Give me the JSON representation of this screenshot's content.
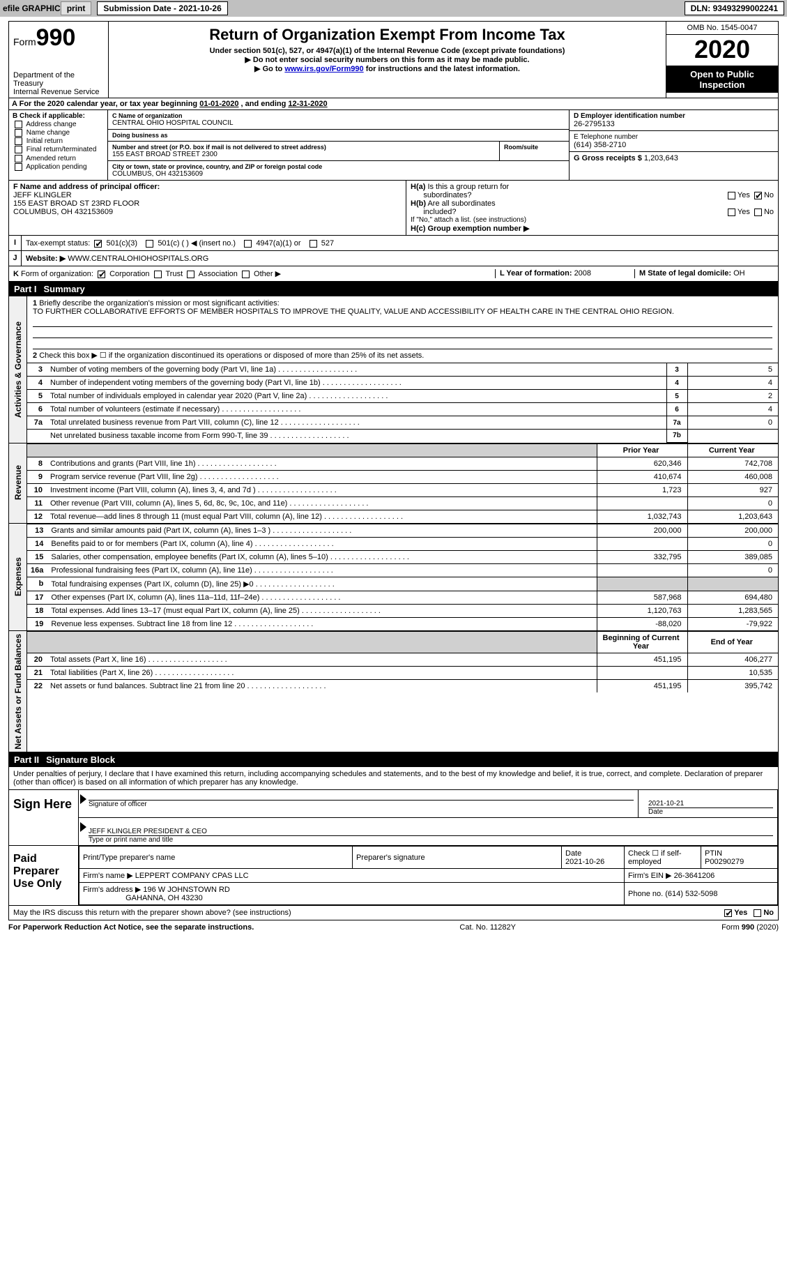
{
  "topbar": {
    "efile_label": "efile GRAPHIC",
    "print_btn": "print",
    "submission_date_label": "Submission Date - ",
    "submission_date": "2021-10-26",
    "dln_label": "DLN: ",
    "dln": "93493299002241"
  },
  "header": {
    "form_word": "Form",
    "form_number": "990",
    "title": "Return of Organization Exempt From Income Tax",
    "subtitle": "Under section 501(c), 527, or 4947(a)(1) of the Internal Revenue Code (except private foundations)",
    "line1": "▶ Do not enter social security numbers on this form as it may be made public.",
    "line2_pre": "▶ Go to ",
    "line2_link": "www.irs.gov/Form990",
    "line2_post": " for instructions and the latest information.",
    "dept1": "Department of the",
    "dept2": "Treasury",
    "dept3": "Internal Revenue Service",
    "omb": "OMB No. 1545-0047",
    "year": "2020",
    "open1": "Open to Public",
    "open2": "Inspection"
  },
  "taxyear": {
    "text_pre": "For the 2020 calendar year, or tax year beginning ",
    "begin": "01-01-2020",
    "mid": " , and ending ",
    "end": "12-31-2020"
  },
  "boxB": {
    "header": "B Check if applicable:",
    "items": [
      "Address change",
      "Name change",
      "Initial return",
      "Final return/terminated",
      "Amended return",
      "Application pending"
    ]
  },
  "boxC": {
    "label": "C Name of organization",
    "name": "CENTRAL OHIO HOSPITAL COUNCIL",
    "dba_label": "Doing business as",
    "dba": "",
    "addr_label": "Number and street (or P.O. box if mail is not delivered to street address)",
    "addr": "155 EAST BROAD STREET 2300",
    "room_label": "Room/suite",
    "room": "",
    "city_label": "City or town, state or province, country, and ZIP or foreign postal code",
    "city": "COLUMBUS, OH  432153609"
  },
  "boxD": {
    "label": "D Employer identification number",
    "value": "26-2795133"
  },
  "boxE": {
    "label": "E Telephone number",
    "value": "(614) 358-2710"
  },
  "boxG": {
    "label": "G Gross receipts $ ",
    "value": "1,203,643"
  },
  "boxF": {
    "label": "F Name and address of principal officer:",
    "name": "JEFF KLINGLER",
    "addr1": "155 EAST BROAD ST 23RD FLOOR",
    "addr2": "COLUMBUS, OH  432153609"
  },
  "boxH": {
    "ha_label": "H(a) Is this a group return for subordinates?",
    "ha_yes": "Yes",
    "ha_no": "No",
    "hb_label": "H(b) Are all subordinates included?",
    "hb_note": "If \"No,\" attach a list. (see instructions)",
    "hc_label": "H(c) Group exemption number ▶"
  },
  "rowI": {
    "label": "I",
    "text": "Tax-exempt status:",
    "opts": [
      "501(c)(3)",
      "501(c) (  ) ◀ (insert no.)",
      "4947(a)(1) or",
      "527"
    ]
  },
  "rowJ": {
    "label": "J",
    "text": "Website: ▶",
    "value": "WWW.CENTRALOHIOHOSPITALS.ORG"
  },
  "rowK": {
    "label": "K",
    "text": "Form of organization:",
    "opts": [
      "Corporation",
      "Trust",
      "Association",
      "Other ▶"
    ]
  },
  "rowL": {
    "label": "L Year of formation: ",
    "value": "2008"
  },
  "rowM": {
    "label": "M State of legal domicile: ",
    "value": "OH"
  },
  "part1": {
    "partnum": "Part I",
    "title": "Summary",
    "q1_label": "1",
    "q1_text": "Briefly describe the organization's mission or most significant activities:",
    "q1_answer": "TO FURTHER COLLABORATIVE EFFORTS OF MEMBER HOSPITALS TO IMPROVE THE QUALITY, VALUE AND ACCESSIBILITY OF HEALTH CARE IN THE CENTRAL OHIO REGION.",
    "q2_text": "Check this box ▶ ☐ if the organization discontinued its operations or disposed of more than 25% of its net assets.",
    "side_gov": "Activities & Governance",
    "side_rev": "Revenue",
    "side_exp": "Expenses",
    "side_net": "Net Assets or Fund Balances",
    "hdr_prior": "Prior Year",
    "hdr_current": "Current Year",
    "hdr_begin": "Beginning of Current Year",
    "hdr_end": "End of Year",
    "lines_gov": [
      {
        "n": "3",
        "d": "Number of voting members of the governing body (Part VI, line 1a)",
        "box": "3",
        "v": "5"
      },
      {
        "n": "4",
        "d": "Number of independent voting members of the governing body (Part VI, line 1b)",
        "box": "4",
        "v": "4"
      },
      {
        "n": "5",
        "d": "Total number of individuals employed in calendar year 2020 (Part V, line 2a)",
        "box": "5",
        "v": "2"
      },
      {
        "n": "6",
        "d": "Total number of volunteers (estimate if necessary)",
        "box": "6",
        "v": "4"
      },
      {
        "n": "7a",
        "d": "Total unrelated business revenue from Part VIII, column (C), line 12",
        "box": "7a",
        "v": "0"
      },
      {
        "n": "",
        "d": "Net unrelated business taxable income from Form 990-T, line 39",
        "box": "7b",
        "v": ""
      }
    ],
    "lines_rev": [
      {
        "n": "8",
        "d": "Contributions and grants (Part VIII, line 1h)",
        "p": "620,346",
        "c": "742,708"
      },
      {
        "n": "9",
        "d": "Program service revenue (Part VIII, line 2g)",
        "p": "410,674",
        "c": "460,008"
      },
      {
        "n": "10",
        "d": "Investment income (Part VIII, column (A), lines 3, 4, and 7d )",
        "p": "1,723",
        "c": "927"
      },
      {
        "n": "11",
        "d": "Other revenue (Part VIII, column (A), lines 5, 6d, 8c, 9c, 10c, and 11e)",
        "p": "",
        "c": "0"
      },
      {
        "n": "12",
        "d": "Total revenue—add lines 8 through 11 (must equal Part VIII, column (A), line 12)",
        "p": "1,032,743",
        "c": "1,203,643"
      }
    ],
    "lines_exp": [
      {
        "n": "13",
        "d": "Grants and similar amounts paid (Part IX, column (A), lines 1–3 )",
        "p": "200,000",
        "c": "200,000"
      },
      {
        "n": "14",
        "d": "Benefits paid to or for members (Part IX, column (A), line 4)",
        "p": "",
        "c": "0"
      },
      {
        "n": "15",
        "d": "Salaries, other compensation, employee benefits (Part IX, column (A), lines 5–10)",
        "p": "332,795",
        "c": "389,085"
      },
      {
        "n": "16a",
        "d": "Professional fundraising fees (Part IX, column (A), line 11e)",
        "p": "",
        "c": "0"
      },
      {
        "n": "b",
        "d": "Total fundraising expenses (Part IX, column (D), line 25) ▶0",
        "p": "SHADE",
        "c": "SHADE"
      },
      {
        "n": "17",
        "d": "Other expenses (Part IX, column (A), lines 11a–11d, 11f–24e)",
        "p": "587,968",
        "c": "694,480"
      },
      {
        "n": "18",
        "d": "Total expenses. Add lines 13–17 (must equal Part IX, column (A), line 25)",
        "p": "1,120,763",
        "c": "1,283,565"
      },
      {
        "n": "19",
        "d": "Revenue less expenses. Subtract line 18 from line 12",
        "p": "-88,020",
        "c": "-79,922"
      }
    ],
    "lines_net": [
      {
        "n": "20",
        "d": "Total assets (Part X, line 16)",
        "p": "451,195",
        "c": "406,277"
      },
      {
        "n": "21",
        "d": "Total liabilities (Part X, line 26)",
        "p": "",
        "c": "10,535"
      },
      {
        "n": "22",
        "d": "Net assets or fund balances. Subtract line 21 from line 20",
        "p": "451,195",
        "c": "395,742"
      }
    ]
  },
  "part2": {
    "partnum": "Part II",
    "title": "Signature Block",
    "declare": "Under penalties of perjury, I declare that I have examined this return, including accompanying schedules and statements, and to the best of my knowledge and belief, it is true, correct, and complete. Declaration of preparer (other than officer) is based on all information of which preparer has any knowledge.",
    "sign_here": "Sign Here",
    "sig_officer_label": "Signature of officer",
    "sig_date": "2021-10-21",
    "sig_date_label": "Date",
    "officer_name": "JEFF KLINGLER  PRESIDENT & CEO",
    "officer_label": "Type or print name and title",
    "paid_label": "Paid Preparer Use Only",
    "prep_headers": [
      "Print/Type preparer's name",
      "Preparer's signature",
      "Date",
      "Check ☐ if self-employed",
      "PTIN"
    ],
    "prep_row1": [
      "",
      "",
      "2021-10-26",
      "",
      "P00290279"
    ],
    "firm_name_label": "Firm's name   ▶ ",
    "firm_name": "LEPPERT COMPANY CPAS LLC",
    "firm_ein_label": "Firm's EIN ▶ ",
    "firm_ein": "26-3641206",
    "firm_addr_label": "Firm's address ▶ ",
    "firm_addr": "196 W JOHNSTOWN RD",
    "firm_addr2": "GAHANNA, OH  43230",
    "firm_phone_label": "Phone no. ",
    "firm_phone": "(614) 532-5098",
    "discuss": "May the IRS discuss this return with the preparer shown above? (see instructions)",
    "discuss_yes": "Yes",
    "discuss_no": "No"
  },
  "footer": {
    "left": "For Paperwork Reduction Act Notice, see the separate instructions.",
    "mid": "Cat. No. 11282Y",
    "right": "Form 990 (2020)"
  }
}
